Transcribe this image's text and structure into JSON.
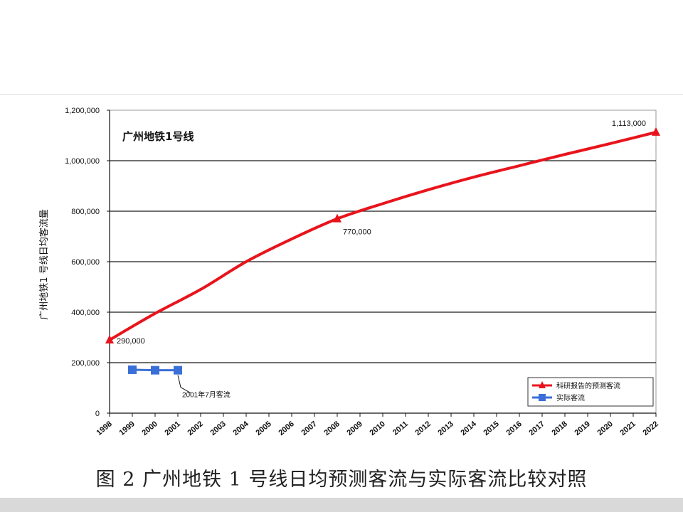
{
  "caption": "图 2   广州地铁 1 号线日均预测客流与实际客流比较对照",
  "chart_data": {
    "type": "line",
    "title": "广州地铁1号线",
    "xlabel": "",
    "ylabel": "广州地铁1 号线日均客流量",
    "ylim": [
      0,
      1200000
    ],
    "yticks": [
      0,
      200000,
      400000,
      600000,
      800000,
      1000000,
      1200000
    ],
    "ytick_labels": [
      "0",
      "200,000",
      "400,000",
      "600,000",
      "800,000",
      "1,000,000",
      "1,200,000"
    ],
    "categories": [
      "1998",
      "1999",
      "2000",
      "2001",
      "2002",
      "2003",
      "2004",
      "2005",
      "2006",
      "2007",
      "2008",
      "2009",
      "2010",
      "2011",
      "2012",
      "2013",
      "2014",
      "2015",
      "2016",
      "2017",
      "2018",
      "2019",
      "2020",
      "2021",
      "2022"
    ],
    "grid": true,
    "legend_position": "bottom-right",
    "series": [
      {
        "name": "科研报告的预测客流",
        "color": "#e8141c",
        "marker": "triangle",
        "points": [
          {
            "x": "1998",
            "y": 290000
          },
          {
            "x": "2008",
            "y": 770000
          },
          {
            "x": "2022",
            "y": 1113000
          }
        ],
        "curve": [
          [
            "1998",
            290000
          ],
          [
            "2000",
            395000
          ],
          [
            "2002",
            490000
          ],
          [
            "2004",
            600000
          ],
          [
            "2006",
            690000
          ],
          [
            "2008",
            770000
          ],
          [
            "2010",
            830000
          ],
          [
            "2012",
            885000
          ],
          [
            "2014",
            935000
          ],
          [
            "2016",
            980000
          ],
          [
            "2018",
            1025000
          ],
          [
            "2020",
            1068000
          ],
          [
            "2022",
            1113000
          ]
        ]
      },
      {
        "name": "实际客流",
        "color": "#3a6fd8",
        "marker": "square",
        "points": [
          {
            "x": "1999",
            "y": 172000
          },
          {
            "x": "2000",
            "y": 170000
          },
          {
            "x": "2001",
            "y": 170000
          }
        ]
      }
    ],
    "annotations": [
      {
        "text": "290,000",
        "x": "1998",
        "y": 290000
      },
      {
        "text": "770,000",
        "x": "2008",
        "y": 770000
      },
      {
        "text": "1,113,000",
        "x": "2022",
        "y": 1113000
      },
      {
        "text": "2001年7月客流",
        "x": "2001",
        "y": 170000
      }
    ]
  }
}
